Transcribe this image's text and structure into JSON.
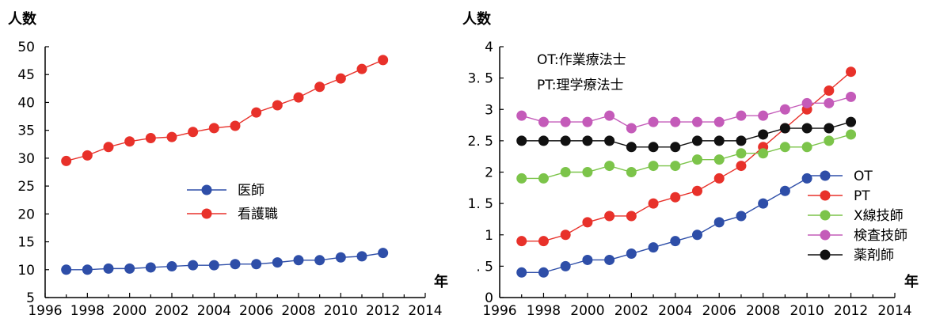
{
  "chart_data": [
    {
      "type": "line",
      "ylabel": "人数",
      "xlabel": "年",
      "xlim": [
        1996,
        2014
      ],
      "ylim": [
        5,
        50
      ],
      "xticks": [
        "1996",
        "1998",
        "2000",
        "2002",
        "2004",
        "2006",
        "2008",
        "2010",
        "2012",
        "2014"
      ],
      "yticks": [
        "5",
        "10",
        "15",
        "20",
        "25",
        "30",
        "35",
        "40",
        "45",
        "50"
      ],
      "grid": false,
      "legend_position": "center",
      "x": [
        1997,
        1998,
        1999,
        2000,
        2001,
        2002,
        2003,
        2004,
        2005,
        2006,
        2007,
        2008,
        2009,
        2010,
        2011,
        2012
      ],
      "series": [
        {
          "name": "医師",
          "color": "#2e4ea8",
          "values": [
            10.0,
            10.0,
            10.2,
            10.2,
            10.4,
            10.6,
            10.8,
            10.8,
            11.0,
            11.0,
            11.3,
            11.7,
            11.7,
            12.2,
            12.4,
            13.0
          ]
        },
        {
          "name": "看護職",
          "color": "#e8312a",
          "values": [
            29.5,
            30.5,
            32.0,
            33.0,
            33.6,
            33.8,
            34.7,
            35.4,
            35.8,
            38.2,
            39.5,
            40.9,
            42.8,
            44.3,
            46.0,
            47.6
          ]
        }
      ]
    },
    {
      "type": "line",
      "ylabel": "人数",
      "xlabel": "年",
      "xlim": [
        1996,
        2014
      ],
      "ylim": [
        0,
        4
      ],
      "xticks": [
        "1996",
        "1998",
        "2000",
        "2002",
        "2004",
        "2006",
        "2008",
        "2010",
        "2012",
        "2014"
      ],
      "yticks": [
        "0",
        ". 5",
        "1",
        "1. 5",
        "2",
        "2. 5",
        "3",
        "3. 5",
        "4"
      ],
      "grid": false,
      "legend_position": "bottom-right",
      "annotations": [
        "OT:作業療法士",
        "PT:理学療法士"
      ],
      "series": [
        {
          "name": "OT",
          "color": "#2e4ea8",
          "x": [
            1997,
            1998,
            1999,
            2000,
            2001,
            2002,
            2003,
            2004,
            2005,
            2006,
            2007,
            2008,
            2009,
            2010
          ],
          "values": [
            0.4,
            0.4,
            0.5,
            0.6,
            0.6,
            0.7,
            0.8,
            0.9,
            1.0,
            1.2,
            1.3,
            1.5,
            1.7,
            1.9
          ]
        },
        {
          "name": "PT",
          "color": "#e8312a",
          "x": [
            1997,
            1998,
            1999,
            2000,
            2001,
            2002,
            2003,
            2004,
            2005,
            2006,
            2007,
            2008,
            2009,
            2010,
            2011,
            2012
          ],
          "values": [
            0.9,
            0.9,
            1.0,
            1.2,
            1.3,
            1.3,
            1.5,
            1.6,
            1.7,
            1.9,
            2.1,
            2.4,
            2.7,
            3.0,
            3.3,
            3.6
          ]
        },
        {
          "name": "X線技師",
          "color": "#7cc44a",
          "x": [
            1997,
            1998,
            1999,
            2000,
            2001,
            2002,
            2003,
            2004,
            2005,
            2006,
            2007,
            2008,
            2009,
            2010,
            2011,
            2012
          ],
          "values": [
            1.9,
            1.9,
            2.0,
            2.0,
            2.1,
            2.0,
            2.1,
            2.1,
            2.2,
            2.2,
            2.3,
            2.3,
            2.4,
            2.4,
            2.5,
            2.6
          ]
        },
        {
          "name": "検査技師",
          "color": "#c45bb9",
          "x": [
            1997,
            1998,
            1999,
            2000,
            2001,
            2002,
            2003,
            2004,
            2005,
            2006,
            2007,
            2008,
            2009,
            2010,
            2011,
            2012
          ],
          "values": [
            2.9,
            2.8,
            2.8,
            2.8,
            2.9,
            2.7,
            2.8,
            2.8,
            2.8,
            2.8,
            2.9,
            2.9,
            3.0,
            3.1,
            3.1,
            3.2
          ]
        },
        {
          "name": "薬剤師",
          "color": "#111111",
          "x": [
            1997,
            1998,
            1999,
            2000,
            2001,
            2002,
            2003,
            2004,
            2005,
            2006,
            2007,
            2008,
            2009,
            2010,
            2011,
            2012
          ],
          "values": [
            2.5,
            2.5,
            2.5,
            2.5,
            2.5,
            2.4,
            2.4,
            2.4,
            2.5,
            2.5,
            2.5,
            2.6,
            2.7,
            2.7,
            2.7,
            2.8
          ]
        }
      ]
    }
  ]
}
